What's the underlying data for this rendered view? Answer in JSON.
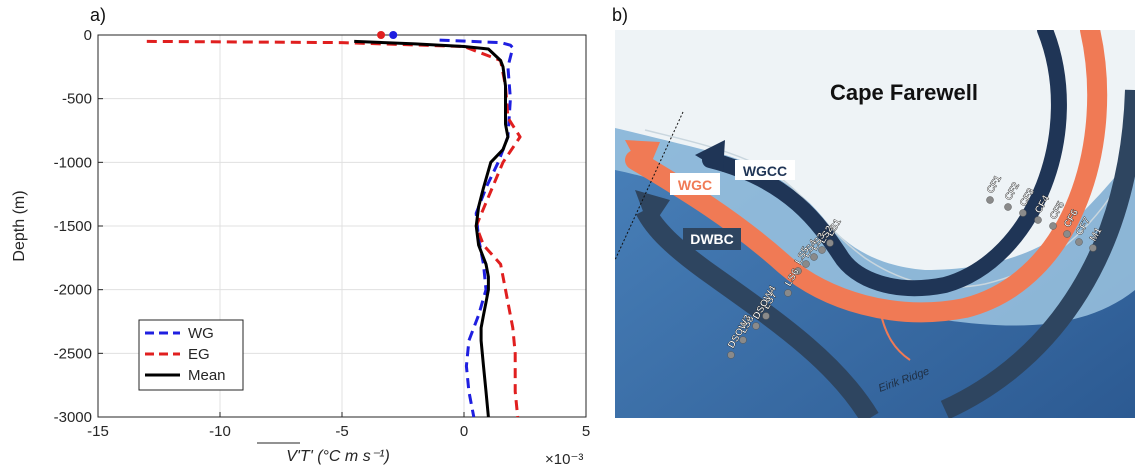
{
  "panel_a_label": "a)",
  "panel_b_label": "b)",
  "chart_data": {
    "type": "line",
    "xlabel": "V'T' (°C m s⁻¹)",
    "ylabel": "Depth (m)",
    "x_multiplier": "×10⁻³",
    "xlim": [
      -15,
      5
    ],
    "ylim": [
      -3000,
      0
    ],
    "x_ticks": [
      -15,
      -10,
      -5,
      0,
      5
    ],
    "y_ticks": [
      0,
      -500,
      -1000,
      -1500,
      -2000,
      -2500,
      -3000
    ],
    "grid": true,
    "legend_position": "bottom-left",
    "series": [
      {
        "name": "WG",
        "color": "#1f1fe0",
        "style": "dashed",
        "x": [
          -1.0,
          1.5,
          1.9,
          2.0,
          1.8,
          1.9,
          1.8,
          1.4,
          0.9,
          0.5,
          0.6,
          0.8,
          0.9,
          0.6,
          0.2,
          0.1,
          0.2,
          0.4
        ],
        "y": [
          -40,
          -60,
          -80,
          -100,
          -250,
          -500,
          -800,
          -1000,
          -1200,
          -1400,
          -1600,
          -1800,
          -2000,
          -2200,
          -2400,
          -2600,
          -2800,
          -3000
        ]
      },
      {
        "name": "EG",
        "color": "#e01f1f",
        "style": "dashed",
        "x": [
          -13.0,
          -5.0,
          0.0,
          1.5,
          1.7,
          1.8,
          2.3,
          1.6,
          0.5,
          0.8,
          1.5,
          1.7,
          2.0,
          2.1,
          2.1,
          2.2
        ],
        "y": [
          -50,
          -60,
          -90,
          -200,
          -400,
          -650,
          -800,
          -1000,
          -1500,
          -1650,
          -1800,
          -2000,
          -2300,
          -2500,
          -2800,
          -3000
        ]
      },
      {
        "name": "Mean",
        "color": "#000000",
        "style": "solid",
        "x": [
          -4.5,
          -2.0,
          0.0,
          1.0,
          1.5,
          1.6,
          1.7,
          1.7,
          1.7,
          1.8,
          1.6,
          1.1,
          0.8,
          0.6,
          0.5,
          0.6,
          0.9,
          1.0,
          1.0,
          0.9,
          0.8,
          0.7,
          0.7,
          0.8,
          0.9,
          1.0
        ],
        "y": [
          -50,
          -70,
          -90,
          -110,
          -200,
          -250,
          -400,
          -550,
          -700,
          -800,
          -900,
          -1000,
          -1200,
          -1350,
          -1500,
          -1650,
          -1800,
          -1900,
          -2000,
          -2100,
          -2200,
          -2300,
          -2400,
          -2600,
          -2800,
          -3000
        ]
      }
    ],
    "markers": [
      {
        "x": -3.4,
        "y": 0,
        "color": "#e01f1f"
      },
      {
        "x": -2.9,
        "y": 0,
        "color": "#1f1fe0"
      }
    ]
  },
  "map": {
    "title": "Cape Farewell",
    "current_labels": {
      "wgcc": "WGCC",
      "wgc": "WGC",
      "dwbc": "DWBC"
    },
    "ridge_label": "Eirik Ridge",
    "stations": [
      "CF1",
      "CF2",
      "CF3",
      "CF4",
      "CF5",
      "CF6",
      "CF7",
      "M1",
      "LS1",
      "LS2",
      "LS3",
      "LS4",
      "LS5",
      "LS6",
      "LS7",
      "DSOW4",
      "LS8",
      "DSOW3"
    ],
    "colors": {
      "ocean": "#3a6fa8",
      "shelf": "#9cc4e0",
      "land": "#eef3f6",
      "wgc": "#f07a55",
      "wgcc": "#1f3556",
      "dwbc": "#2e4560"
    }
  }
}
